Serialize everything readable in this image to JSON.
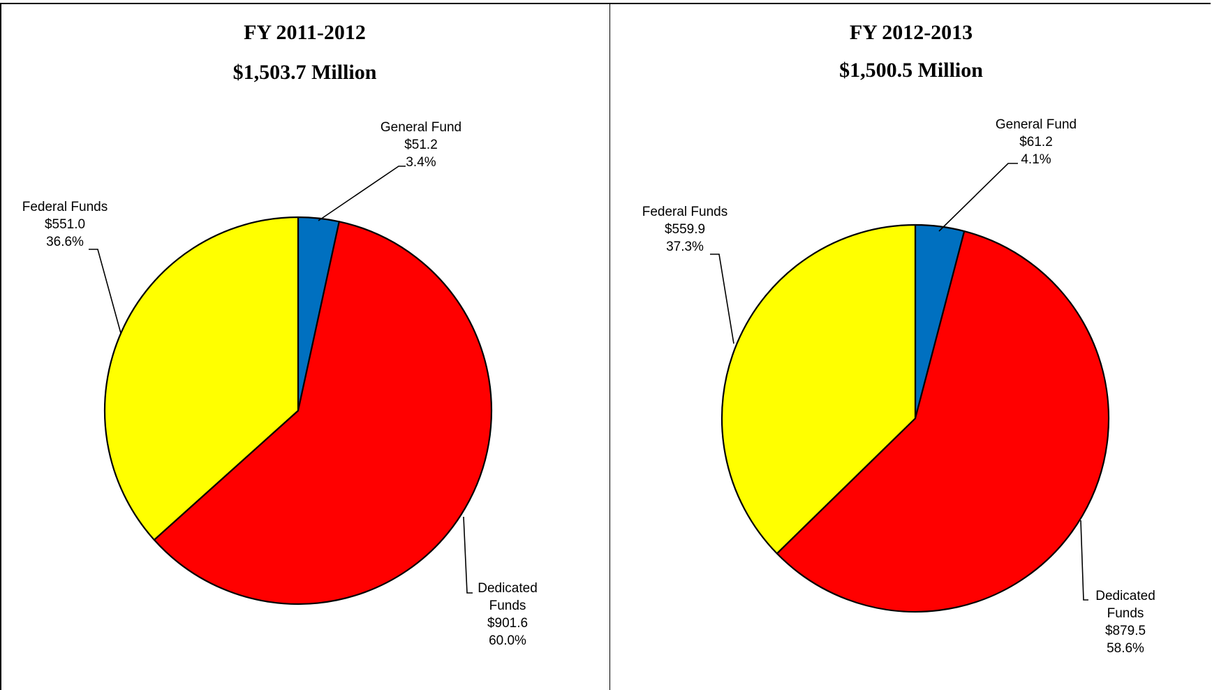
{
  "chart_data": [
    {
      "type": "pie",
      "title": "FY 2011-2012",
      "subtitle": "$1,503.7 Million",
      "slices": [
        {
          "name": "General Fund",
          "value": 51.2,
          "value_label": "$51.2",
          "percent": 3.4,
          "percent_label": "3.4%",
          "color": "#0070C0"
        },
        {
          "name": "Dedicated Funds",
          "value": 901.6,
          "value_label": "$901.6",
          "percent": 60.0,
          "percent_label": "60.0%",
          "color": "#FF0000"
        },
        {
          "name": "Federal Funds",
          "value": 551.0,
          "value_label": "$551.0",
          "percent": 36.6,
          "percent_label": "36.6%",
          "color": "#FFFF00"
        }
      ]
    },
    {
      "type": "pie",
      "title": "FY 2012-2013",
      "subtitle": "$1,500.5 Million",
      "slices": [
        {
          "name": "General Fund",
          "value": 61.2,
          "value_label": "$61.2",
          "percent": 4.1,
          "percent_label": "4.1%",
          "color": "#0070C0"
        },
        {
          "name": "Dedicated Funds",
          "value": 879.5,
          "value_label": "$879.5",
          "percent": 58.6,
          "percent_label": "58.6%",
          "color": "#FF0000"
        },
        {
          "name": "Federal Funds",
          "value": 559.9,
          "value_label": "$559.9",
          "percent": 37.3,
          "percent_label": "37.3%",
          "color": "#FFFF00"
        }
      ]
    }
  ]
}
